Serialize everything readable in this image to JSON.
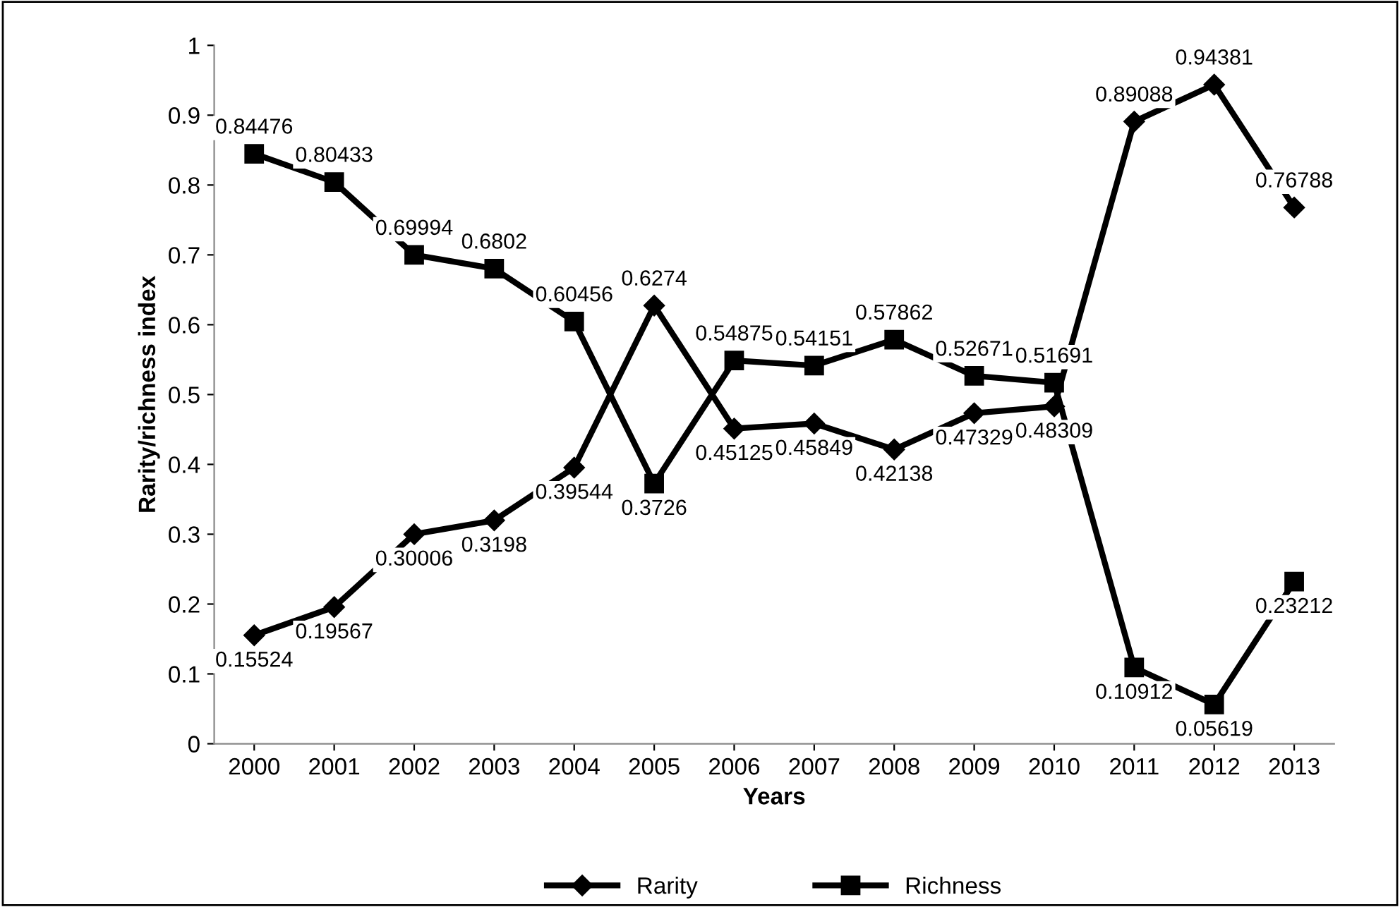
{
  "chart_data": {
    "type": "line",
    "xlabel": "Years",
    "ylabel": "Rarity/richness index",
    "categories": [
      "2000",
      "2001",
      "2002",
      "2003",
      "2004",
      "2005",
      "2006",
      "2007",
      "2008",
      "2009",
      "2010",
      "2011",
      "2012",
      "2013"
    ],
    "series": [
      {
        "name": "Rarity",
        "color": "#000000",
        "marker": "diamond",
        "values": [
          0.15524,
          0.19567,
          0.30006,
          0.3198,
          0.39544,
          0.6274,
          0.45125,
          0.45849,
          0.42138,
          0.47329,
          0.48309,
          0.89088,
          0.94381,
          0.76788
        ]
      },
      {
        "name": "Richness",
        "color": "#000000",
        "marker": "square",
        "values": [
          0.84476,
          0.80433,
          0.69994,
          0.6802,
          0.60456,
          0.3726,
          0.54875,
          0.54151,
          0.57862,
          0.52671,
          0.51691,
          0.10912,
          0.05619,
          0.23212
        ]
      }
    ],
    "ylim": [
      0,
      1
    ],
    "yticks": [
      0,
      0.1,
      0.2,
      0.3,
      0.4,
      0.5,
      0.6,
      0.7,
      0.8,
      0.9,
      1
    ],
    "grid": false,
    "legend": "bottom",
    "data_labels": true,
    "line_style": "solid"
  }
}
